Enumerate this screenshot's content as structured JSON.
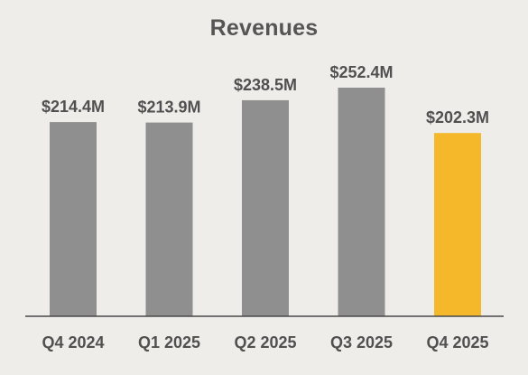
{
  "chart_data": {
    "type": "bar",
    "title": "Revenues",
    "xlabel": "",
    "ylabel": "",
    "categories": [
      "Q4 2024",
      "Q1 2025",
      "Q2 2025",
      "Q3 2025",
      "Q4 2025"
    ],
    "values": [
      214.4,
      213.9,
      238.5,
      252.4,
      202.3
    ],
    "value_labels": [
      "$214.4M",
      "$213.9M",
      "$238.5M",
      "$252.4M",
      "$202.3M"
    ],
    "ylim": [
      0,
      252.4
    ],
    "grid": false,
    "legend": "none",
    "highlight_index": 4,
    "colors": {
      "bar": "#8f8f8f",
      "highlight": "#f4b82a",
      "baseline": "#4a4a4a",
      "text": "#505050",
      "background": "#efedea"
    }
  }
}
